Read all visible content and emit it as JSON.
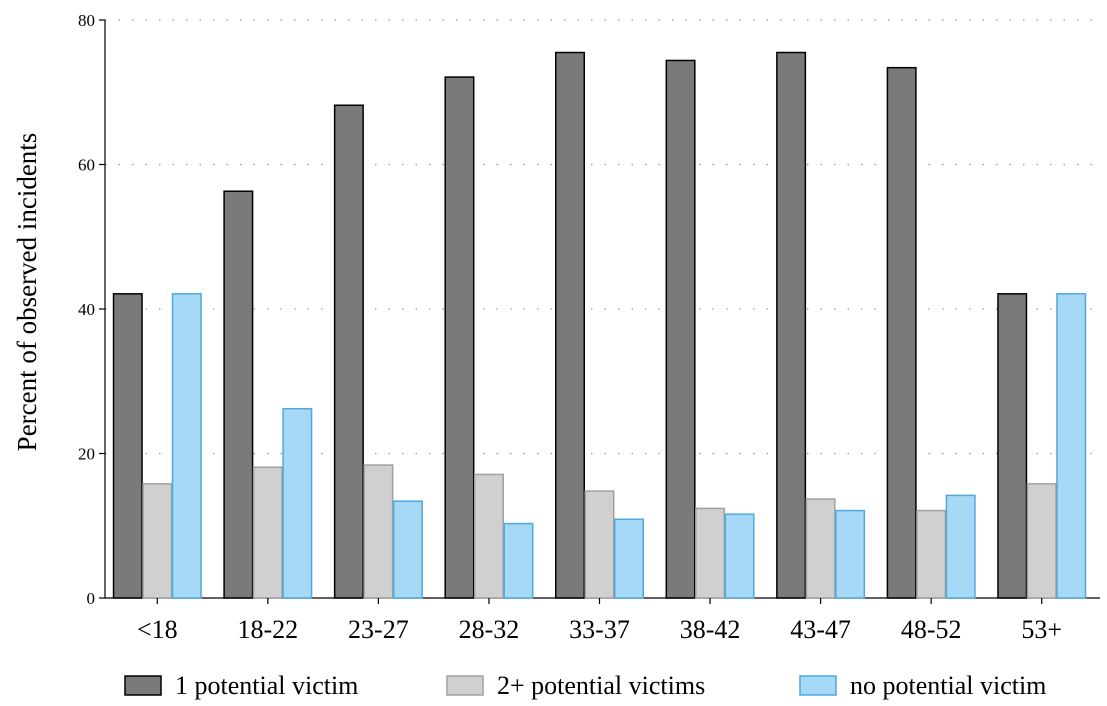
{
  "chart_data": {
    "type": "bar",
    "title": "",
    "xlabel": "",
    "ylabel": "Percent of observed incidents",
    "ylim": [
      0,
      80
    ],
    "yticks": [
      0,
      20,
      40,
      60,
      80
    ],
    "grid": true,
    "legend_position": "bottom",
    "categories": [
      "<18",
      "18-22",
      "23-27",
      "28-32",
      "33-37",
      "38-42",
      "43-47",
      "48-52",
      "53+"
    ],
    "series": [
      {
        "name": "1 potential victim",
        "color": "#7a7a7a",
        "values": [
          42.1,
          56.3,
          68.2,
          72.1,
          75.5,
          74.4,
          75.5,
          73.4,
          42.1
        ]
      },
      {
        "name": "2+ potential victims",
        "color": "#d0d0d0",
        "values": [
          15.8,
          18.1,
          18.4,
          17.1,
          14.8,
          12.4,
          13.7,
          12.1,
          15.8
        ]
      },
      {
        "name": "no potential victim",
        "color": "#a6d9f5",
        "values": [
          42.1,
          26.2,
          13.4,
          10.3,
          10.9,
          11.6,
          12.1,
          14.2,
          42.1
        ]
      }
    ]
  }
}
